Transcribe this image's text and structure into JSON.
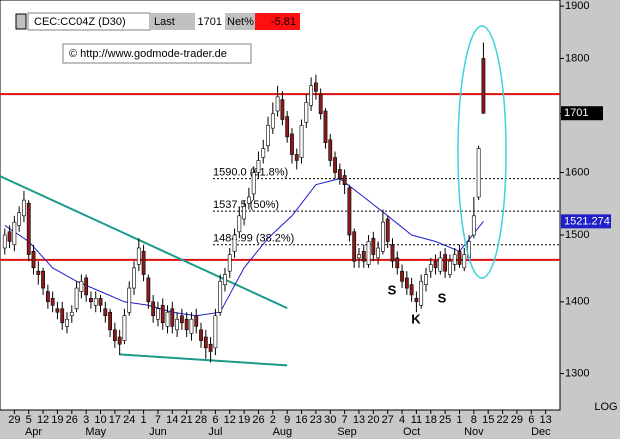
{
  "header": {
    "symbol": "CEC:CC04Z (D30)",
    "last_label": "Last",
    "last": 1701,
    "net_label": "Net%",
    "net": -5.81,
    "source": "© http://www.godmode-trader.de"
  },
  "chart_data": {
    "type": "candlestick",
    "log": true,
    "scale_label": "LOG",
    "ylim": [
      1252,
      1912
    ],
    "yticks": [
      1300,
      1400,
      1500,
      1600,
      1700,
      1800,
      1900
    ],
    "xlim": [
      -1,
      116
    ],
    "xticks": [
      {
        "value": 2,
        "label": "29"
      },
      {
        "value": 5,
        "label": "5"
      },
      {
        "value": 8,
        "label": "12"
      },
      {
        "value": 11,
        "label": "19"
      },
      {
        "value": 14,
        "label": "26"
      },
      {
        "value": 17,
        "label": "3"
      },
      {
        "value": 20,
        "label": "10"
      },
      {
        "value": 23,
        "label": "17"
      },
      {
        "value": 26,
        "label": "24"
      },
      {
        "value": 29,
        "label": "1"
      },
      {
        "value": 32,
        "label": "7"
      },
      {
        "value": 35,
        "label": "14"
      },
      {
        "value": 38,
        "label": "21"
      },
      {
        "value": 41,
        "label": "28"
      },
      {
        "value": 44,
        "label": "6"
      },
      {
        "value": 47,
        "label": "12"
      },
      {
        "value": 50,
        "label": "19"
      },
      {
        "value": 53,
        "label": "26"
      },
      {
        "value": 56,
        "label": "2"
      },
      {
        "value": 59,
        "label": "9"
      },
      {
        "value": 62,
        "label": "16"
      },
      {
        "value": 65,
        "label": "23"
      },
      {
        "value": 68,
        "label": "30"
      },
      {
        "value": 71,
        "label": "7"
      },
      {
        "value": 74,
        "label": "13"
      },
      {
        "value": 77,
        "label": "20"
      },
      {
        "value": 80,
        "label": "27"
      },
      {
        "value": 83,
        "label": "4"
      },
      {
        "value": 86,
        "label": "11"
      },
      {
        "value": 89,
        "label": "18"
      },
      {
        "value": 92,
        "label": "25"
      },
      {
        "value": 95,
        "label": "1"
      },
      {
        "value": 98,
        "label": "8"
      },
      {
        "value": 101,
        "label": "15"
      },
      {
        "value": 104,
        "label": "22"
      },
      {
        "value": 107,
        "label": "29"
      },
      {
        "value": 110,
        "label": "6"
      },
      {
        "value": 113,
        "label": "13"
      }
    ],
    "months": [
      {
        "value": 6,
        "label": "Apr"
      },
      {
        "value": 19,
        "label": "May"
      },
      {
        "value": 32,
        "label": "Jun"
      },
      {
        "value": 44,
        "label": "Jul"
      },
      {
        "value": 58,
        "label": "Aug"
      },
      {
        "value": 71.5,
        "label": "Sep"
      },
      {
        "value": 85,
        "label": "Oct"
      },
      {
        "value": 98,
        "label": "Nov"
      },
      {
        "value": 112,
        "label": "Dec"
      }
    ],
    "up_color": "#ffffff",
    "down_color": "#8b1a1a",
    "open": [
      1480,
      1505,
      1485,
      1515,
      1530,
      1550,
      1475,
      1445,
      1445,
      1415,
      1405,
      1390,
      1390,
      1365,
      1380,
      1390,
      1415,
      1435,
      1405,
      1395,
      1405,
      1390,
      1385,
      1360,
      1350,
      1345,
      1385,
      1420,
      1455,
      1475,
      1435,
      1400,
      1375,
      1395,
      1365,
      1390,
      1360,
      1380,
      1375,
      1355,
      1380,
      1360,
      1350,
      1340,
      1335,
      1385,
      1425,
      1445,
      1475,
      1505,
      1525,
      1550,
      1565,
      1600,
      1625,
      1645,
      1675,
      1705,
      1725,
      1695,
      1665,
      1630,
      1625,
      1685,
      1715,
      1755,
      1735,
      1705,
      1655,
      1625,
      1605,
      1595,
      1575,
      1505,
      1465,
      1475,
      1455,
      1495,
      1465,
      1475,
      1525,
      1485,
      1465,
      1445,
      1435,
      1425,
      1405,
      1395,
      1425,
      1445,
      1460,
      1445,
      1470,
      1440,
      1455,
      1475,
      1450,
      1465,
      1500,
      1560,
      1800
    ],
    "high": [
      1510,
      1515,
      1530,
      1545,
      1570,
      1555,
      1485,
      1460,
      1450,
      1425,
      1415,
      1400,
      1400,
      1385,
      1395,
      1430,
      1440,
      1440,
      1415,
      1415,
      1410,
      1400,
      1390,
      1370,
      1360,
      1390,
      1430,
      1460,
      1495,
      1485,
      1440,
      1410,
      1400,
      1405,
      1395,
      1400,
      1385,
      1390,
      1385,
      1385,
      1390,
      1370,
      1360,
      1350,
      1390,
      1440,
      1450,
      1480,
      1510,
      1545,
      1555,
      1575,
      1610,
      1635,
      1655,
      1695,
      1720,
      1750,
      1740,
      1705,
      1675,
      1640,
      1690,
      1735,
      1765,
      1770,
      1745,
      1710,
      1665,
      1635,
      1615,
      1605,
      1580,
      1510,
      1480,
      1485,
      1500,
      1505,
      1490,
      1540,
      1530,
      1495,
      1475,
      1455,
      1445,
      1435,
      1415,
      1440,
      1450,
      1465,
      1470,
      1475,
      1480,
      1470,
      1480,
      1485,
      1480,
      1500,
      1560,
      1645,
      1830
    ],
    "low": [
      1470,
      1480,
      1475,
      1505,
      1520,
      1460,
      1440,
      1425,
      1410,
      1390,
      1385,
      1375,
      1360,
      1355,
      1370,
      1385,
      1405,
      1400,
      1390,
      1385,
      1385,
      1370,
      1350,
      1335,
      1325,
      1340,
      1380,
      1410,
      1445,
      1430,
      1390,
      1370,
      1365,
      1360,
      1355,
      1355,
      1350,
      1360,
      1350,
      1345,
      1355,
      1335,
      1320,
      1315,
      1325,
      1380,
      1415,
      1435,
      1465,
      1495,
      1515,
      1540,
      1555,
      1590,
      1615,
      1635,
      1665,
      1695,
      1680,
      1650,
      1615,
      1605,
      1615,
      1675,
      1705,
      1725,
      1690,
      1640,
      1610,
      1590,
      1580,
      1565,
      1490,
      1450,
      1450,
      1450,
      1450,
      1460,
      1455,
      1470,
      1480,
      1450,
      1440,
      1420,
      1410,
      1400,
      1385,
      1390,
      1415,
      1435,
      1440,
      1440,
      1435,
      1435,
      1445,
      1450,
      1445,
      1460,
      1495,
      1555,
      1700
    ],
    "close": [
      1500,
      1490,
      1520,
      1535,
      1555,
      1470,
      1450,
      1440,
      1420,
      1400,
      1395,
      1385,
      1370,
      1375,
      1385,
      1420,
      1430,
      1410,
      1400,
      1405,
      1395,
      1380,
      1360,
      1345,
      1340,
      1380,
      1420,
      1450,
      1480,
      1440,
      1400,
      1380,
      1390,
      1370,
      1385,
      1365,
      1375,
      1370,
      1360,
      1375,
      1365,
      1345,
      1335,
      1330,
      1380,
      1430,
      1440,
      1470,
      1500,
      1530,
      1545,
      1560,
      1600,
      1620,
      1640,
      1680,
      1700,
      1730,
      1690,
      1660,
      1630,
      1620,
      1680,
      1720,
      1750,
      1740,
      1700,
      1650,
      1620,
      1600,
      1590,
      1580,
      1500,
      1460,
      1470,
      1460,
      1490,
      1470,
      1480,
      1520,
      1490,
      1460,
      1450,
      1430,
      1420,
      1410,
      1400,
      1430,
      1440,
      1455,
      1450,
      1465,
      1445,
      1460,
      1470,
      1455,
      1470,
      1490,
      1530,
      1640,
      1701
    ],
    "ma": {
      "color": "#1f1fc8",
      "x": [
        0,
        5,
        10,
        15,
        20,
        25,
        30,
        35,
        40,
        45,
        50,
        55,
        60,
        65,
        70,
        75,
        80,
        85,
        90,
        95,
        100
      ],
      "values": [
        1515,
        1490,
        1450,
        1430,
        1415,
        1400,
        1395,
        1385,
        1380,
        1385,
        1450,
        1495,
        1530,
        1580,
        1590,
        1560,
        1530,
        1500,
        1490,
        1475,
        1521.274
      ]
    },
    "levels": {
      "color": "#e01010",
      "values": [
        1735,
        1462
      ]
    },
    "fib": [
      {
        "value": 1590,
        "label": "1590.0 (61.8%)"
      },
      {
        "value": 1537.5,
        "label": "1537.5 (50%)"
      },
      {
        "value": 1484.99,
        "label": "1484.99 (38.2%)"
      }
    ],
    "trendlines": {
      "color": "#1a9a8a",
      "lines": [
        {
          "x": [
            -1,
            59
          ],
          "values": [
            1594,
            1391
          ]
        },
        {
          "x": [
            24,
            59
          ],
          "values": [
            1326,
            1311
          ]
        }
      ]
    },
    "annotations": [
      "S",
      "K",
      "S"
    ]
  }
}
